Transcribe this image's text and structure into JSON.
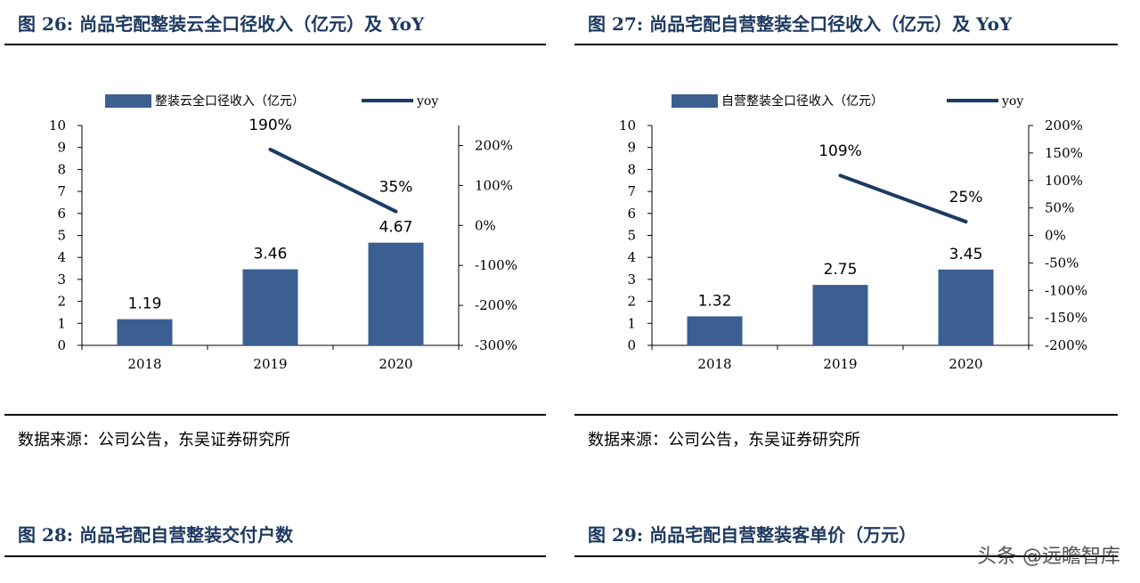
{
  "figures": {
    "fig26": {
      "title": "图 26:  尚品宅配整装云全口径收入（亿元）及 YoY",
      "source": "数据来源：公司公告，东吴证券研究所"
    },
    "fig27": {
      "title": "图 27:  尚品宅配自营整装全口径收入（亿元）及 YoY",
      "source": "数据来源：公司公告，东吴证券研究所"
    },
    "fig28": {
      "title": "图 28:  尚品宅配自营整装交付户数"
    },
    "fig29": {
      "title": "图 29:  尚品宅配自营整装客单价（万元）"
    }
  },
  "watermark": "头条 @远瞻智库",
  "chart_data": [
    {
      "type": "bar",
      "categories": [
        "2018",
        "2019",
        "2020"
      ],
      "series": [
        {
          "name": "整装云全口径收入（亿元）",
          "type": "bar",
          "axis": "left",
          "values": [
            1.19,
            3.46,
            4.67
          ],
          "labels": [
            "1.19",
            "3.46",
            "4.67"
          ],
          "color": "#3b5f91"
        },
        {
          "name": "yoy",
          "type": "line",
          "axis": "right",
          "values": [
            null,
            190,
            35
          ],
          "labels": [
            "",
            "190%",
            "35%"
          ],
          "color": "#1c3a63"
        }
      ],
      "ylim": [
        0,
        10
      ],
      "y_ticks": [
        "0",
        "1",
        "2",
        "3",
        "4",
        "5",
        "6",
        "7",
        "8",
        "9",
        "10"
      ],
      "y2lim": [
        -300,
        250
      ],
      "y2_tick_values": [
        -300,
        -200,
        -100,
        0,
        100,
        200
      ],
      "y2_ticks": [
        "-300%",
        "-200%",
        "-100%",
        "0%",
        "100%",
        "200%"
      ],
      "legend": "top",
      "grid": false
    },
    {
      "type": "bar",
      "categories": [
        "2018",
        "2019",
        "2020"
      ],
      "series": [
        {
          "name": "自营整装全口径收入（亿元）",
          "type": "bar",
          "axis": "left",
          "values": [
            1.32,
            2.75,
            3.45
          ],
          "labels": [
            "1.32",
            "2.75",
            "3.45"
          ],
          "color": "#3b5f91"
        },
        {
          "name": "yoy",
          "type": "line",
          "axis": "right",
          "values": [
            null,
            109,
            25
          ],
          "labels": [
            "",
            "109%",
            "25%"
          ],
          "color": "#1c3a63"
        }
      ],
      "ylim": [
        0,
        10
      ],
      "y_ticks": [
        "0",
        "1",
        "2",
        "3",
        "4",
        "5",
        "6",
        "7",
        "8",
        "9",
        "10"
      ],
      "y2lim": [
        -200,
        200
      ],
      "y2_tick_values": [
        -200,
        -150,
        -100,
        -50,
        0,
        50,
        100,
        150,
        200
      ],
      "y2_ticks": [
        "-200%",
        "-150%",
        "-100%",
        "-50%",
        "0%",
        "50%",
        "100%",
        "150%",
        "200%"
      ],
      "legend": "top",
      "grid": false
    }
  ]
}
